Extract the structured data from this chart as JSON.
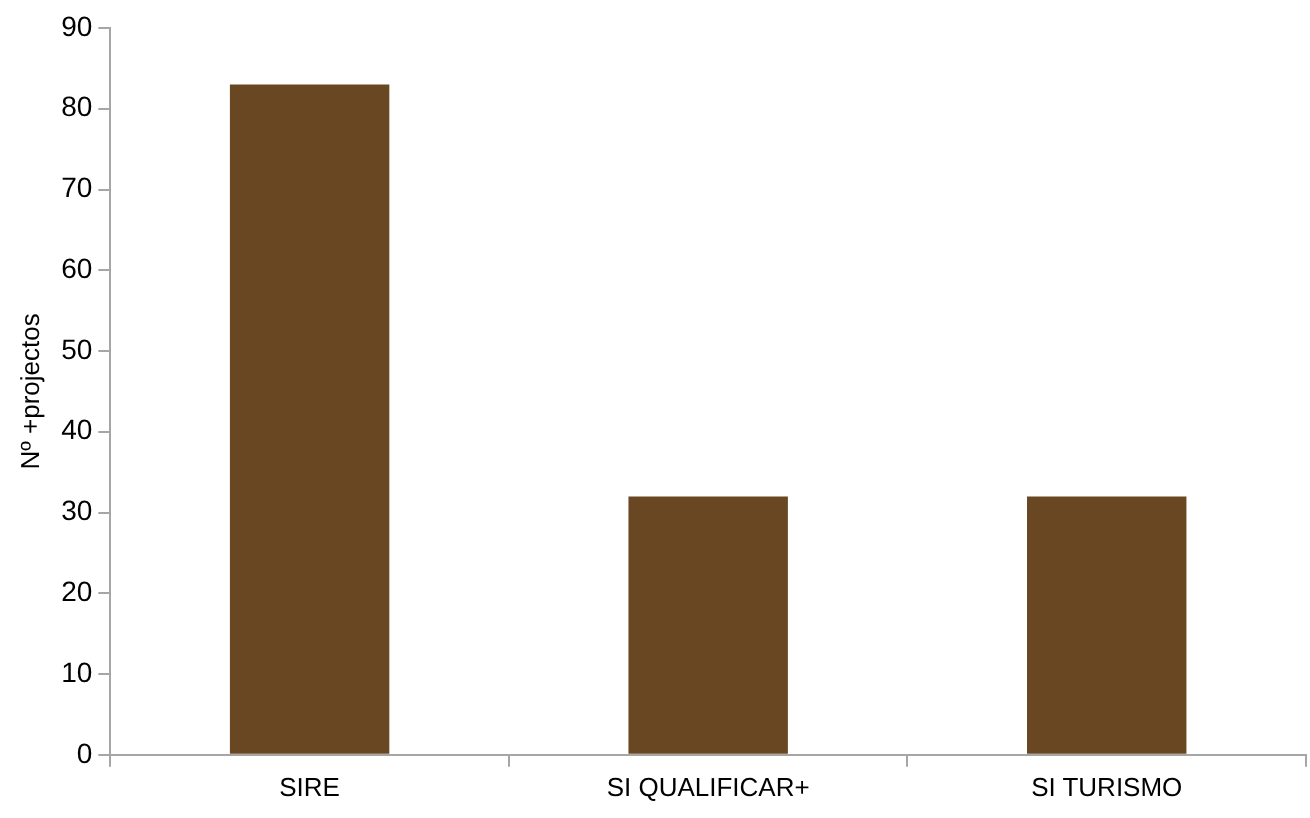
{
  "chart_data": {
    "type": "bar",
    "ylabel": "Nº +projectos",
    "categories": [
      "SIRE",
      "SI QUALIFICAR+",
      "SI TURISMO"
    ],
    "values": [
      83,
      32,
      32
    ],
    "color": "#694723",
    "ylim": [
      0,
      90
    ],
    "yticks": [
      0,
      10,
      20,
      30,
      40,
      50,
      60,
      70,
      80,
      90
    ],
    "grid": false,
    "legend": false
  }
}
